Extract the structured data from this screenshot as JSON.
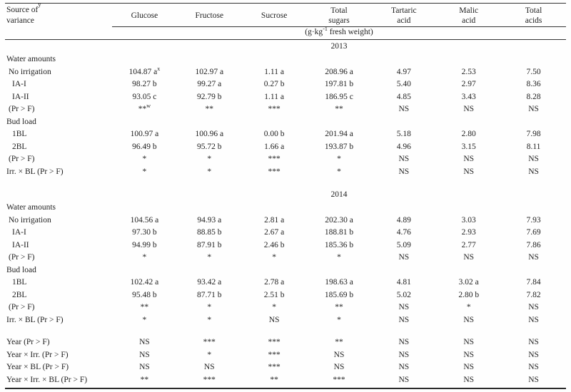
{
  "page": {
    "background": "#fefefe",
    "text_color": "#222222",
    "rule_color": "#333333"
  },
  "table": {
    "header": {
      "source_label": "Source of\nvariance",
      "source_sup": "y",
      "columns": [
        "Glucose",
        "Fructose",
        "Sucrose",
        "Total\nsugars",
        "Tartaric\nacid",
        "Malic\nacid",
        "Total\nacids"
      ],
      "unit": {
        "pre": "(g·kg",
        "sup": "-1",
        "post": " fresh weight)"
      }
    },
    "sections": [
      {
        "year": "2013",
        "gap_before": false,
        "rows": [
          {
            "label": "Water amounts",
            "indent": 0,
            "values": [
              "",
              "",
              "",
              "",
              "",
              "",
              ""
            ]
          },
          {
            "label": "No irrigation",
            "indent": 1,
            "values": [
              "104.87 a^x",
              "102.97 a",
              "1.11 a",
              "208.96 a",
              "4.97",
              "2.53",
              "7.50"
            ]
          },
          {
            "label": "IA-I",
            "indent": 2,
            "values": [
              "98.27 b",
              "99.27 a",
              "0.27 b",
              "197.81 b",
              "5.40",
              "2.97",
              "8.36"
            ]
          },
          {
            "label": "IA-II",
            "indent": 2,
            "values": [
              "93.05 c",
              "92.79 b",
              "1.11 a",
              "186.95 c",
              "4.85",
              "3.43",
              "8.28"
            ]
          },
          {
            "label": "(Pr > F)",
            "indent": 1,
            "values": [
              "**^w",
              "**",
              "***",
              "**",
              "NS",
              "NS",
              "NS"
            ]
          },
          {
            "label": "Bud load",
            "indent": 0,
            "values": [
              "",
              "",
              "",
              "",
              "",
              "",
              ""
            ]
          },
          {
            "label": "1BL",
            "indent": 2,
            "values": [
              "100.97 a",
              "100.96 a",
              "0.00 b",
              "201.94 a",
              "5.18",
              "2.80",
              "7.98"
            ]
          },
          {
            "label": "2BL",
            "indent": 2,
            "values": [
              "96.49 b",
              "95.72 b",
              "1.66 a",
              "193.87 b",
              "4.96",
              "3.15",
              "8.11"
            ]
          },
          {
            "label": "(Pr > F)",
            "indent": 1,
            "values": [
              "*",
              "*",
              "***",
              "*",
              "NS",
              "NS",
              "NS"
            ]
          },
          {
            "label": "Irr. × BL (Pr > F)",
            "indent": 0,
            "values": [
              "*",
              "*",
              "***",
              "*",
              "NS",
              "NS",
              "NS"
            ]
          }
        ]
      },
      {
        "year": "2014",
        "gap_before": true,
        "rows": [
          {
            "label": "Water amounts",
            "indent": 0,
            "values": [
              "",
              "",
              "",
              "",
              "",
              "",
              ""
            ]
          },
          {
            "label": "No irrigation",
            "indent": 1,
            "values": [
              "104.56 a",
              "94.93 a",
              "2.81 a",
              "202.30 a",
              "4.89",
              "3.03",
              "7.93"
            ]
          },
          {
            "label": "IA-I",
            "indent": 2,
            "values": [
              "97.30 b",
              "88.85 b",
              "2.67 a",
              "188.81 b",
              "4.76",
              "2.93",
              "7.69"
            ]
          },
          {
            "label": "IA-II",
            "indent": 2,
            "values": [
              "94.99 b",
              "87.91 b",
              "2.46 b",
              "185.36 b",
              "5.09",
              "2.77",
              "7.86"
            ]
          },
          {
            "label": "(Pr > F)",
            "indent": 1,
            "values": [
              "*",
              "*",
              "*",
              "*",
              "NS",
              "NS",
              "NS"
            ]
          },
          {
            "label": "Bud load",
            "indent": 0,
            "values": [
              "",
              "",
              "",
              "",
              "",
              "",
              ""
            ]
          },
          {
            "label": "1BL",
            "indent": 2,
            "values": [
              "102.42 a",
              "93.42 a",
              "2.78 a",
              "198.63 a",
              "4.81",
              "3.02 a",
              "7.84"
            ]
          },
          {
            "label": "2BL",
            "indent": 2,
            "values": [
              "95.48 b",
              "87.71 b",
              "2.51 b",
              "185.69 b",
              "5.02",
              "2.80 b",
              "7.82"
            ]
          },
          {
            "label": "(Pr > F)",
            "indent": 1,
            "values": [
              "**",
              "*",
              "*",
              "**",
              "NS",
              "*",
              "NS"
            ]
          },
          {
            "label": "Irr. × BL (Pr > F)",
            "indent": 0,
            "values": [
              "*",
              "*",
              "NS",
              "*",
              "NS",
              "NS",
              "NS"
            ]
          }
        ]
      },
      {
        "year": null,
        "gap_before": true,
        "rows": [
          {
            "label": "Year (Pr > F)",
            "indent": 0,
            "values": [
              "NS",
              "***",
              "***",
              "**",
              "NS",
              "NS",
              "NS"
            ]
          },
          {
            "label": "Year × Irr. (Pr > F)",
            "indent": 0,
            "values": [
              "NS",
              "*",
              "***",
              "NS",
              "NS",
              "NS",
              "NS"
            ]
          },
          {
            "label": "Year × BL (Pr > F)",
            "indent": 0,
            "values": [
              "NS",
              "NS",
              "***",
              "NS",
              "NS",
              "NS",
              "NS"
            ]
          },
          {
            "label": "Year × Irr. × BL (Pr > F)",
            "indent": 0,
            "values": [
              "**",
              "***",
              "**",
              "***",
              "NS",
              "NS",
              "NS"
            ]
          }
        ]
      }
    ]
  }
}
